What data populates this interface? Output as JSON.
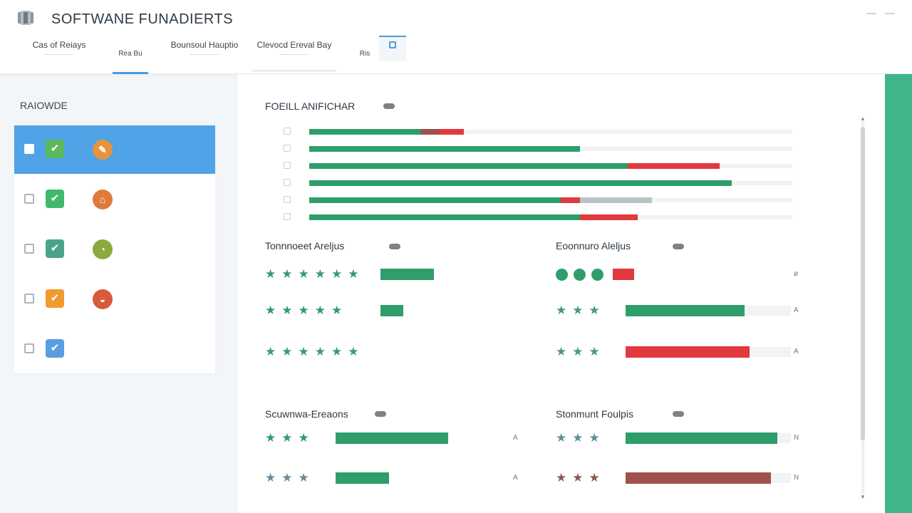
{
  "header": {
    "title": "SOFTWANE FUNADIERTS",
    "tabs": [
      {
        "label": "Cas of Reiays",
        "active": false
      },
      {
        "label": "Rea Bu",
        "active": true
      },
      {
        "label": "Bounsoul Hauptio",
        "active": false
      },
      {
        "label": "Clevocd Ereval Bay",
        "active": false
      },
      {
        "label": "Ris",
        "active": false
      }
    ]
  },
  "sidebar": {
    "title": "RAIOWDE",
    "items": [
      {
        "check_color": "#5cb85c",
        "badge_color": "#e8933a",
        "badge_glyph": "✎",
        "has_badge": true,
        "active": true
      },
      {
        "check_color": "#3fba6a",
        "badge_color": "#e07a3a",
        "badge_glyph": "⌂",
        "has_badge": true,
        "active": false
      },
      {
        "check_color": "#4aa38a",
        "badge_color": "#8aab3c",
        "badge_glyph": "◔",
        "has_badge": true,
        "active": false
      },
      {
        "check_color": "#f19a2e",
        "badge_color": "#d85a3a",
        "badge_glyph": "◒",
        "has_badge": true,
        "active": false
      },
      {
        "check_color": "#5a9de0",
        "badge_color": "",
        "badge_glyph": "",
        "has_badge": false,
        "active": false
      }
    ]
  },
  "colors": {
    "green": "#2f9e6a",
    "red": "#e0393e",
    "gray": "#b9c2c6",
    "brown": "#a0524a",
    "accent": "#3fb58a",
    "blue": "#4fa3e6"
  },
  "sections": {
    "top": {
      "title": "FOEILL ANIFICHAR",
      "bars": [
        {
          "segments": [
            {
              "color": "green",
              "fraction": 0.23
            },
            {
              "color": "brown",
              "fraction": 0.04
            },
            {
              "color": "red",
              "fraction": 0.05
            }
          ]
        },
        {
          "segments": [
            {
              "color": "green",
              "fraction": 0.56
            }
          ]
        },
        {
          "segments": [
            {
              "color": "green",
              "fraction": 0.66
            },
            {
              "color": "red",
              "fraction": 0.19
            }
          ]
        },
        {
          "segments": [
            {
              "color": "green",
              "fraction": 0.875
            }
          ]
        },
        {
          "segments": [
            {
              "color": "green",
              "fraction": 0.52
            },
            {
              "color": "red",
              "fraction": 0.04
            },
            {
              "color": "gray",
              "fraction": 0.15
            }
          ]
        },
        {
          "segments": [
            {
              "color": "green",
              "fraction": 0.56
            },
            {
              "color": "red",
              "fraction": 0.12
            }
          ]
        }
      ]
    },
    "mid_left": {
      "title": "Tonnnoeet Areljus",
      "rows": [
        {
          "stars": 6,
          "star_color": "#2f9e6a",
          "bar_color": "green",
          "bar_fraction": 0.75
        },
        {
          "stars": 5,
          "star_color": "#2f9e6a",
          "bar_color": "green",
          "bar_fraction": 0.32
        },
        {
          "stars": 6,
          "star_color": "#3a9a78",
          "bar_color": "green",
          "bar_fraction": 0.0
        }
      ]
    },
    "mid_right": {
      "title": "Eoonnuro Aleljus",
      "rows": [
        {
          "kind": "dots",
          "count": 3,
          "mark_color": "#2f9e6a",
          "bar_color": "red",
          "bar_fraction": 0.13,
          "end_label": "ø"
        },
        {
          "kind": "stars",
          "count": 3,
          "mark_color": "#4a9488",
          "bar_color": "green",
          "bar_fraction": 0.72,
          "end_label": "A"
        },
        {
          "kind": "stars",
          "count": 3,
          "mark_color": "#4a9488",
          "bar_color": "red",
          "bar_fraction": 0.75,
          "end_label": "A"
        }
      ]
    },
    "bottom_left": {
      "title": "Scuwnwa-Ereaons",
      "rows": [
        {
          "stars": 3,
          "star_color": "#2f9e6a",
          "bar_color": "green",
          "bar_fraction": 0.63,
          "end_label": "A"
        },
        {
          "stars": 3,
          "star_color": "#6e8a98",
          "bar_color": "green",
          "bar_fraction": 0.3,
          "end_label": "A"
        }
      ]
    },
    "bottom_right": {
      "title": "Stonmunt Foulpis",
      "rows": [
        {
          "stars": 3,
          "star_color": "#5a9096",
          "bar_color": "green",
          "bar_fraction": 0.92,
          "end_label": "N"
        },
        {
          "stars": 3,
          "star_color": "#8a5a52",
          "bar_color": "brown",
          "bar_fraction": 0.88,
          "end_label": "N"
        }
      ]
    }
  }
}
